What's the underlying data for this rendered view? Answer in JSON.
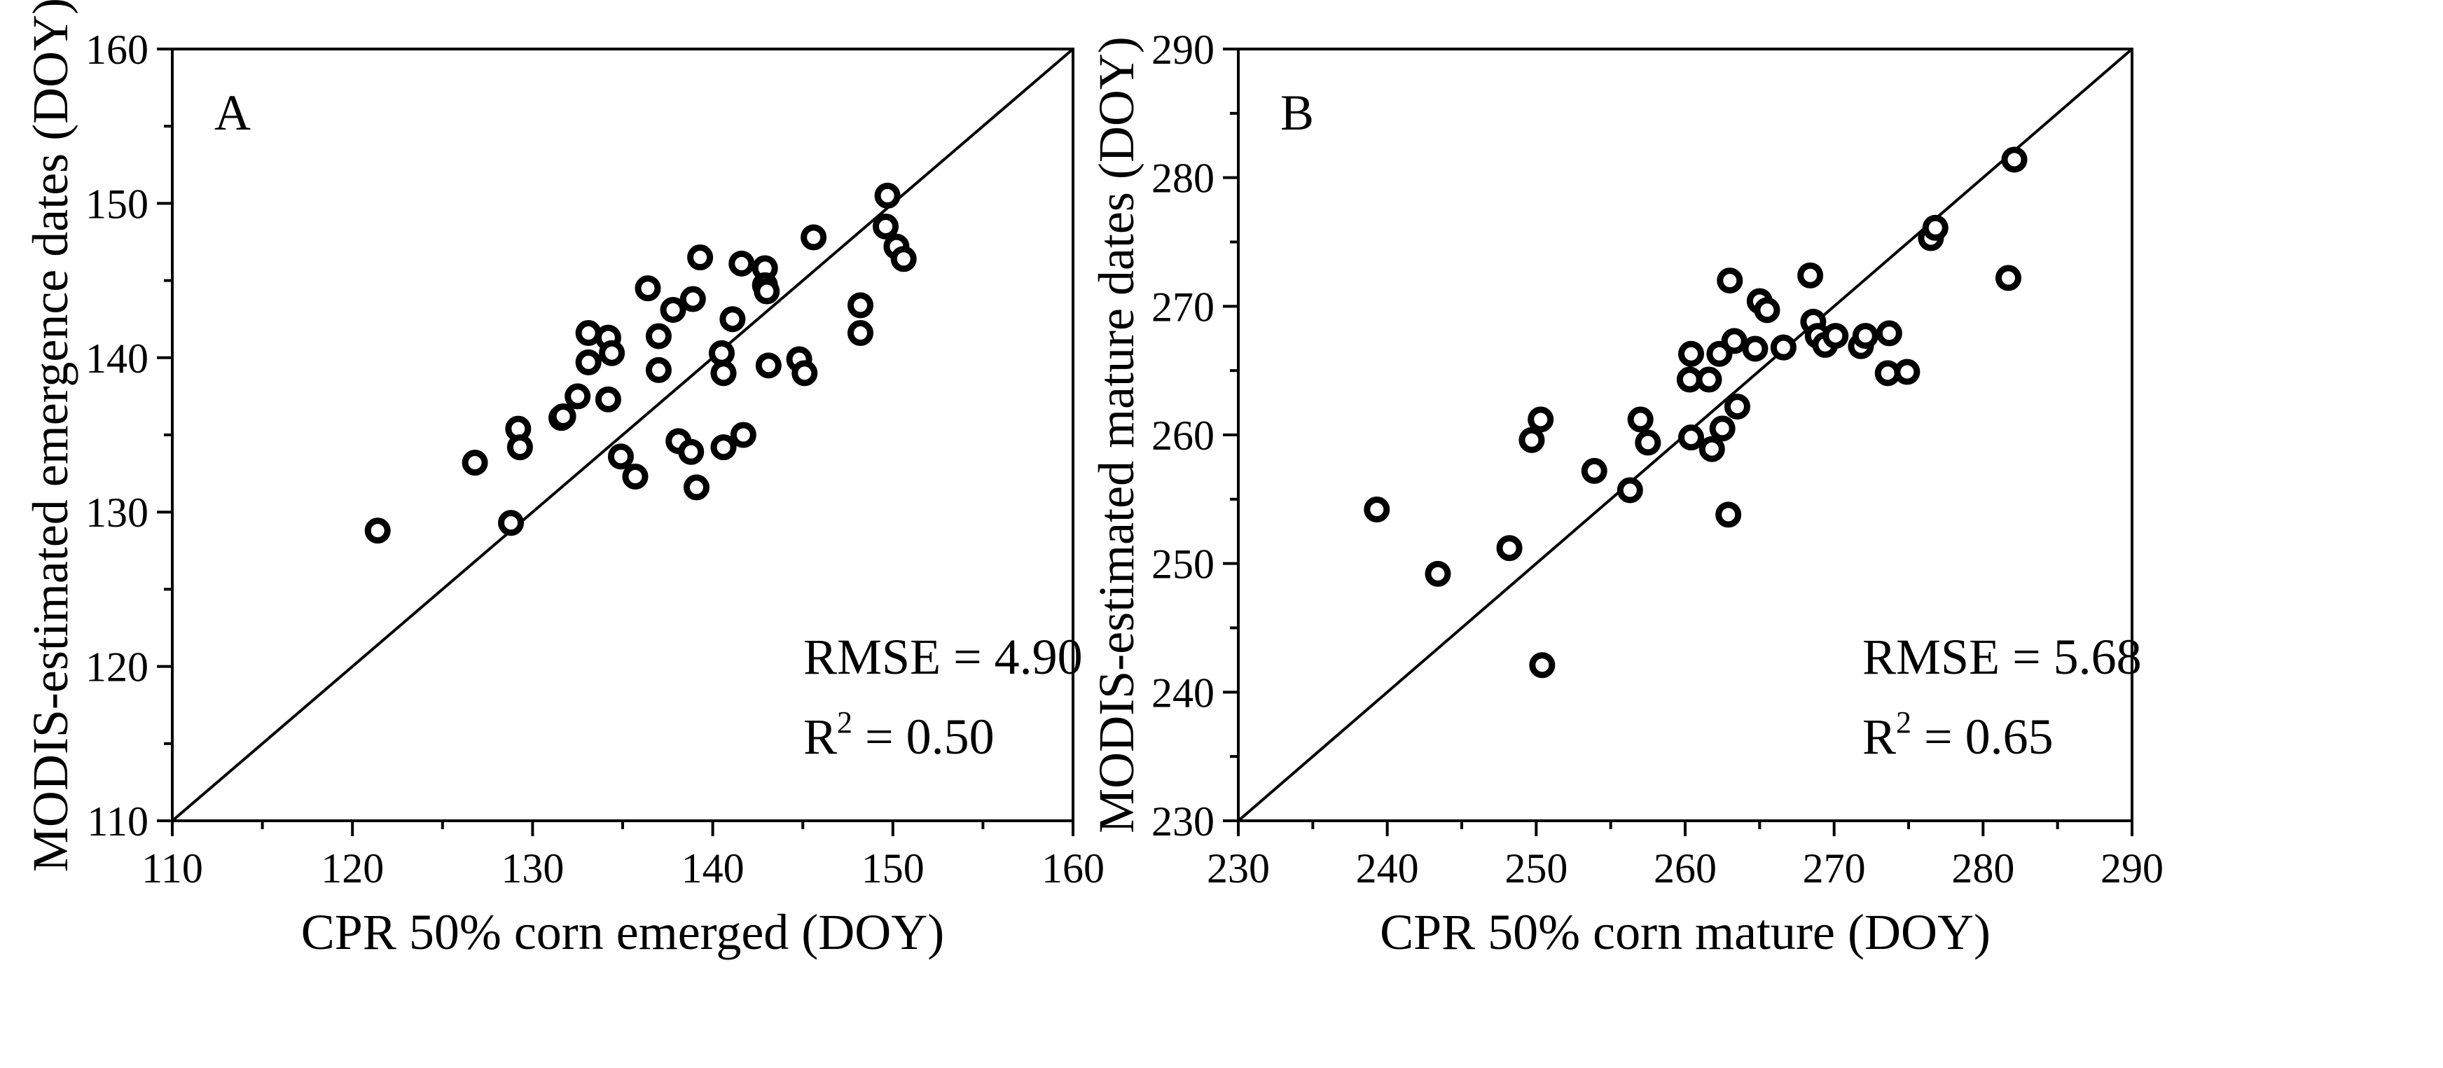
{
  "chart_data": [
    {
      "type": "scatter",
      "panel": "A",
      "xlabel": "CPR 50% corn emerged (DOY)",
      "ylabel": "MODIS-estimated emergence dates (DOY)",
      "xlim": [
        110,
        160
      ],
      "ylim": [
        110,
        160
      ],
      "xticks": [
        110,
        120,
        130,
        140,
        150,
        160
      ],
      "yticks": [
        110,
        120,
        130,
        140,
        150,
        160
      ],
      "reference_line": "1:1",
      "rmse_label": "RMSE = 4.90",
      "r2_prefix": "R",
      "r2_sup": "2",
      "r2_value": " = 0.50",
      "points": [
        [
          121.4,
          128.8
        ],
        [
          126.8,
          133.2
        ],
        [
          128.8,
          129.3
        ],
        [
          129.2,
          135.4
        ],
        [
          129.3,
          134.2
        ],
        [
          131.6,
          136.1
        ],
        [
          131.7,
          136.2
        ],
        [
          132.5,
          137.5
        ],
        [
          133.1,
          141.6
        ],
        [
          133.1,
          139.7
        ],
        [
          134.2,
          141.3
        ],
        [
          134.2,
          137.3
        ],
        [
          134.4,
          140.3
        ],
        [
          134.9,
          133.6
        ],
        [
          135.7,
          132.3
        ],
        [
          136.4,
          144.5
        ],
        [
          137.0,
          141.4
        ],
        [
          137.0,
          139.2
        ],
        [
          137.8,
          143.1
        ],
        [
          138.1,
          134.6
        ],
        [
          138.8,
          133.9
        ],
        [
          138.9,
          143.8
        ],
        [
          139.1,
          131.6
        ],
        [
          139.3,
          146.5
        ],
        [
          140.5,
          140.3
        ],
        [
          140.6,
          139.0
        ],
        [
          140.6,
          134.2
        ],
        [
          141.1,
          142.5
        ],
        [
          141.6,
          146.1
        ],
        [
          141.7,
          135.0
        ],
        [
          142.9,
          145.8
        ],
        [
          142.9,
          144.7
        ],
        [
          143.0,
          144.3
        ],
        [
          143.1,
          139.5
        ],
        [
          144.8,
          139.9
        ],
        [
          145.1,
          139.0
        ],
        [
          145.6,
          147.8
        ],
        [
          148.2,
          143.4
        ],
        [
          148.2,
          141.6
        ],
        [
          149.6,
          148.5
        ],
        [
          149.7,
          150.5
        ],
        [
          150.2,
          147.2
        ],
        [
          150.6,
          146.4
        ]
      ]
    },
    {
      "type": "scatter",
      "panel": "B",
      "xlabel": "CPR 50% corn mature (DOY)",
      "ylabel": "MODIS-estimated mature dates (DOY)",
      "xlim": [
        230,
        290
      ],
      "ylim": [
        230,
        290
      ],
      "xticks": [
        230,
        240,
        250,
        260,
        270,
        280,
        290
      ],
      "yticks": [
        230,
        240,
        250,
        260,
        270,
        280,
        290
      ],
      "reference_line": "1:1",
      "rmse_label": "RMSE = 5.68",
      "r2_prefix": "R",
      "r2_sup": "2",
      "r2_value": " = 0.65",
      "points": [
        [
          239.3,
          254.2
        ],
        [
          243.4,
          249.2
        ],
        [
          248.2,
          251.2
        ],
        [
          249.7,
          259.6
        ],
        [
          250.3,
          261.2
        ],
        [
          250.4,
          242.1
        ],
        [
          253.9,
          257.2
        ],
        [
          256.3,
          255.7
        ],
        [
          257.0,
          261.2
        ],
        [
          257.5,
          259.4
        ],
        [
          260.3,
          264.3
        ],
        [
          260.4,
          266.3
        ],
        [
          260.4,
          259.8
        ],
        [
          261.6,
          264.3
        ],
        [
          261.8,
          258.9
        ],
        [
          262.3,
          266.3
        ],
        [
          262.5,
          260.5
        ],
        [
          262.9,
          253.8
        ],
        [
          263.0,
          272.0
        ],
        [
          263.3,
          267.3
        ],
        [
          263.5,
          262.2
        ],
        [
          264.7,
          266.7
        ],
        [
          265.0,
          270.4
        ],
        [
          265.5,
          269.7
        ],
        [
          266.6,
          266.8
        ],
        [
          268.4,
          272.4
        ],
        [
          268.6,
          268.8
        ],
        [
          268.9,
          267.7
        ],
        [
          269.4,
          267.0
        ],
        [
          270.1,
          267.7
        ],
        [
          271.8,
          266.9
        ],
        [
          272.1,
          267.7
        ],
        [
          273.6,
          264.8
        ],
        [
          273.7,
          267.9
        ],
        [
          274.9,
          264.9
        ],
        [
          276.5,
          275.3
        ],
        [
          276.8,
          276.1
        ],
        [
          281.7,
          272.2
        ],
        [
          282.1,
          281.4
        ]
      ]
    }
  ]
}
